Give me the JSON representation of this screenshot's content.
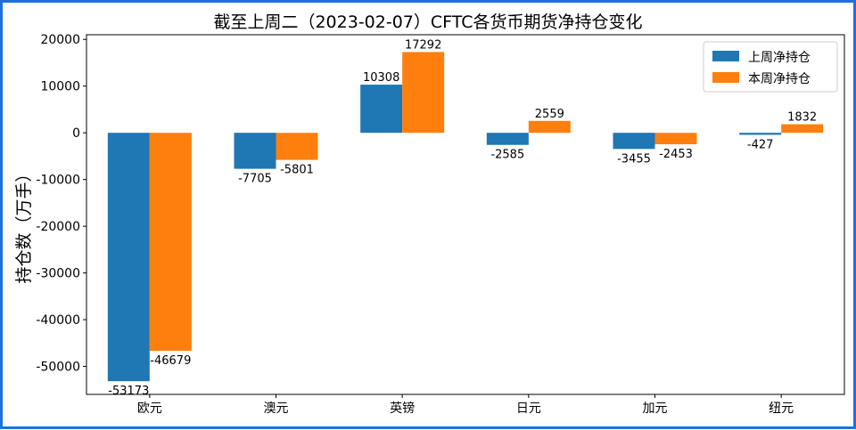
{
  "chart_data": {
    "type": "bar",
    "title": "截至上周二（2023-02-07）CFTC各货币期货净持仓变化",
    "ylabel": "持仓数（万手）",
    "xlabel": "",
    "categories": [
      "欧元",
      "澳元",
      "英镑",
      "日元",
      "加元",
      "纽元"
    ],
    "series": [
      {
        "name": "上周净持仓",
        "color": "#1f77b4",
        "values": [
          -53173,
          -7705,
          10308,
          -2585,
          -3455,
          -427
        ]
      },
      {
        "name": "本周净持仓",
        "color": "#ff7f0e",
        "values": [
          -46679,
          -5801,
          17292,
          2559,
          -2453,
          1832
        ]
      }
    ],
    "ylim": [
      -56000,
      21000
    ],
    "yticks": [
      20000,
      10000,
      0,
      -10000,
      -20000,
      -30000,
      -40000,
      -50000
    ],
    "legend": "top-right",
    "grid": false
  }
}
